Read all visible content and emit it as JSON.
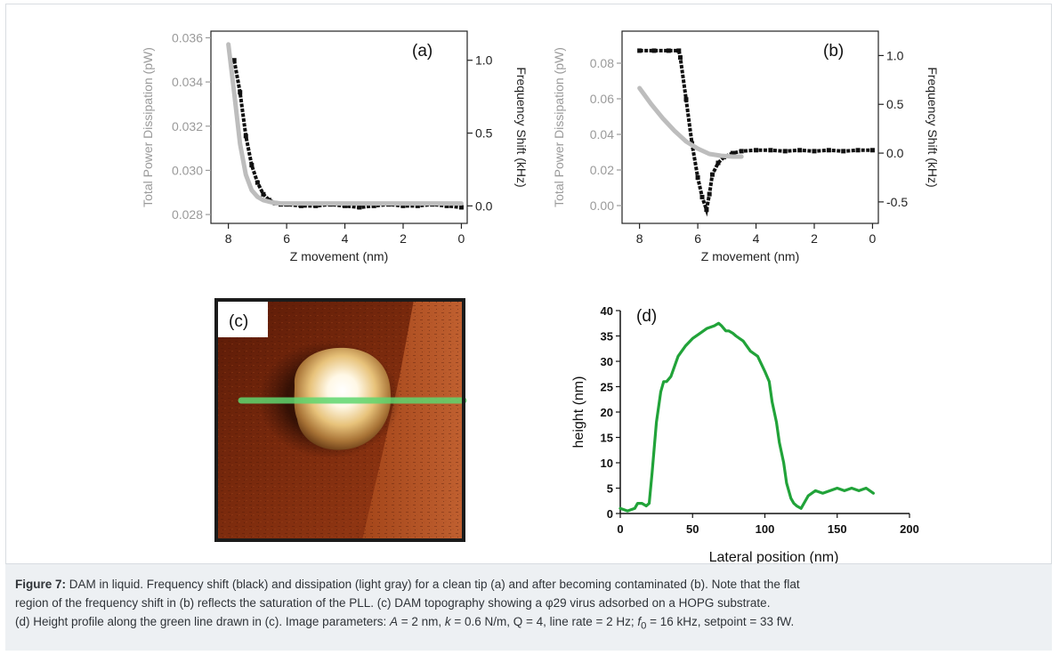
{
  "colors": {
    "frequency_shift": "#111111",
    "dissipation": "#bdbdbd",
    "height_profile": "#21a339",
    "dissipation_axis": "#9a9a9a",
    "caption_bg": "#edf0f3"
  },
  "chart_data": [
    {
      "type": "line",
      "panel_label": "(a)",
      "xlabel": "Z movement (nm)",
      "xlim": [
        8.6,
        -0.2
      ],
      "xticks": [
        8,
        6,
        4,
        2,
        0
      ],
      "left_axis": {
        "label": "Total Power Dissipation (pW)",
        "ylim": [
          0.0276,
          0.0363
        ],
        "ticks": [
          0.028,
          0.03,
          0.032,
          0.034,
          0.036
        ],
        "tick_labels": [
          "0.028",
          "0.030",
          "0.032",
          "0.034",
          "0.036"
        ]
      },
      "right_axis": {
        "label": "Frequency Shift (kHz)",
        "ylim": [
          -0.12,
          1.2
        ],
        "ticks": [
          0.0,
          0.5,
          1.0
        ],
        "tick_labels": [
          "0.0",
          "0.5",
          "1.0"
        ]
      },
      "series": [
        {
          "axis": "right",
          "style": "markers",
          "x": [
            7.8,
            7.6,
            7.4,
            7.2,
            7.0,
            6.8,
            6.6,
            6.4,
            6.2,
            6.0,
            5.5,
            5.0,
            4.5,
            4.0,
            3.5,
            3.0,
            2.5,
            2.0,
            1.5,
            1.0,
            0.5,
            0.0
          ],
          "values": [
            1.0,
            0.78,
            0.48,
            0.28,
            0.16,
            0.08,
            0.04,
            0.02,
            0.01,
            0.01,
            0.0,
            0.0,
            0.01,
            0.0,
            -0.01,
            0.0,
            0.01,
            0.0,
            0.0,
            0.01,
            0.0,
            -0.01
          ]
        },
        {
          "axis": "left",
          "style": "thick",
          "x": [
            8.0,
            7.8,
            7.6,
            7.4,
            7.2,
            7.0,
            6.8,
            6.5,
            6.2,
            6.0,
            5.5,
            5.0,
            4.0,
            3.0,
            2.0,
            1.0,
            0.0
          ],
          "values": [
            0.0357,
            0.0335,
            0.0312,
            0.0298,
            0.0291,
            0.0288,
            0.02865,
            0.02855,
            0.0285,
            0.0285,
            0.0285,
            0.0285,
            0.0285,
            0.0285,
            0.0285,
            0.0285,
            0.0285
          ]
        }
      ]
    },
    {
      "type": "line",
      "panel_label": "(b)",
      "xlabel": "Z movement (nm)",
      "xlim": [
        8.6,
        -0.2
      ],
      "xticks": [
        8,
        6,
        4,
        2,
        0
      ],
      "left_axis": {
        "label": "Total Power Dissipation (pW)",
        "ylim": [
          -0.01,
          0.098
        ],
        "ticks": [
          0.0,
          0.02,
          0.04,
          0.06,
          0.08
        ],
        "tick_labels": [
          "0.00",
          "0.02",
          "0.04",
          "0.06",
          "0.08"
        ]
      },
      "right_axis": {
        "label": "Frequency Shift (kHz)",
        "ylim": [
          -0.72,
          1.25
        ],
        "ticks": [
          -0.5,
          0.0,
          0.5,
          1.0
        ],
        "tick_labels": [
          "-0.5",
          "0.0",
          "0.5",
          "1.0"
        ]
      },
      "series": [
        {
          "axis": "right",
          "style": "markers",
          "x": [
            8.0,
            7.5,
            7.0,
            6.65,
            6.6,
            6.4,
            6.2,
            6.0,
            5.85,
            5.7,
            5.6,
            5.5,
            5.3,
            5.1,
            4.8,
            4.5,
            4.0,
            3.5,
            3.0,
            2.5,
            2.0,
            1.5,
            1.0,
            0.5,
            0.0
          ],
          "values": [
            1.05,
            1.05,
            1.05,
            1.05,
            0.98,
            0.55,
            0.1,
            -0.25,
            -0.45,
            -0.58,
            -0.42,
            -0.22,
            -0.1,
            -0.04,
            0.0,
            0.02,
            0.03,
            0.03,
            0.02,
            0.03,
            0.02,
            0.03,
            0.02,
            0.03,
            0.03
          ]
        },
        {
          "axis": "left",
          "style": "thick",
          "x": [
            8.0,
            7.6,
            7.2,
            6.8,
            6.4,
            6.0,
            5.6,
            5.2,
            4.8,
            4.5
          ],
          "values": [
            0.066,
            0.057,
            0.049,
            0.042,
            0.036,
            0.032,
            0.029,
            0.028,
            0.0275,
            0.0275
          ]
        }
      ]
    },
    {
      "type": "line",
      "panel_label": "(d)",
      "xlabel": "Lateral position (nm)",
      "ylabel": "height (nm)",
      "xlim": [
        0,
        200
      ],
      "ylim": [
        0,
        40
      ],
      "xticks": [
        0,
        50,
        100,
        150,
        200
      ],
      "yticks": [
        0,
        5,
        10,
        15,
        20,
        25,
        30,
        35,
        40
      ],
      "series": [
        {
          "x": [
            0,
            5,
            10,
            12,
            15,
            18,
            20,
            22,
            25,
            28,
            30,
            32,
            35,
            40,
            45,
            50,
            55,
            60,
            65,
            68,
            70,
            73,
            75,
            78,
            80,
            85,
            90,
            95,
            100,
            103,
            105,
            108,
            110,
            113,
            115,
            118,
            120,
            122,
            125,
            128,
            130,
            135,
            140,
            145,
            150,
            155,
            160,
            165,
            170,
            175
          ],
          "values": [
            1,
            0.5,
            1,
            2,
            2,
            1.5,
            2,
            8,
            18,
            24,
            26,
            26,
            27,
            31,
            33,
            34.5,
            35.5,
            36.5,
            37,
            37.5,
            37,
            36,
            36,
            35.5,
            35,
            34,
            32,
            31,
            28,
            26,
            22,
            18,
            14,
            10,
            6,
            3,
            2,
            1.5,
            1,
            2.5,
            3.5,
            4.5,
            4,
            4.5,
            5,
            4.5,
            5,
            4.5,
            5,
            4
          ]
        }
      ]
    }
  ],
  "image_c": {
    "panel_label": "(c)"
  },
  "caption": {
    "lead": "Figure 7:",
    "line1": " DAM in liquid. Frequency shift (black) and dissipation (light gray) for a clean tip (a) and after becoming contaminated (b). Note that the flat",
    "line2": "region of the frequency shift in (b) reflects the saturation of the PLL. (c) DAM topography showing a φ29 virus adsorbed on a HOPG substrate.",
    "line3_a": "(d) Height profile along the green line drawn in (c). Image parameters: ",
    "var_A": "A",
    "line3_b": " = 2 nm, ",
    "var_k": "k",
    "line3_c": " = 0.6 N/m, Q = 4, line rate = 2 Hz; ",
    "var_f": "f",
    "sub_0": "0",
    "line3_d": " = 16 kHz, setpoint = 33 fW."
  }
}
